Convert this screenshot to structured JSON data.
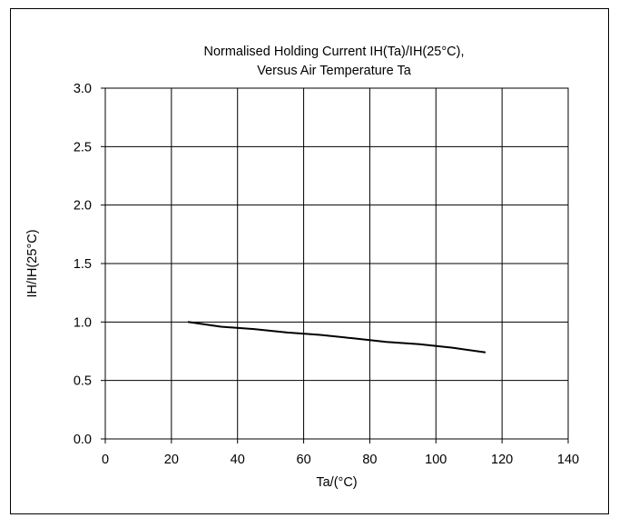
{
  "chart_data": {
    "type": "line",
    "title_line1": "Normalised Holding Current IH(Ta)/IH(25°C),",
    "title_line2": "Versus Air Temperature Ta",
    "xlabel": "Ta/(°C)",
    "ylabel": "IH/IH(25°C)",
    "xlim": [
      0,
      140
    ],
    "ylim": [
      0,
      3.0
    ],
    "x_ticks": [
      "0",
      "20",
      "40",
      "60",
      "80",
      "100",
      "120",
      "140"
    ],
    "y_ticks": [
      "0.0",
      "0.5",
      "1.0",
      "1.5",
      "2.0",
      "2.5",
      "3.0"
    ],
    "grid": true,
    "legend": "none",
    "series": [
      {
        "color": "#000000",
        "x": [
          25,
          35,
          45,
          55,
          65,
          75,
          85,
          95,
          105,
          115
        ],
        "y": [
          1.0,
          0.96,
          0.94,
          0.91,
          0.89,
          0.86,
          0.83,
          0.81,
          0.78,
          0.74
        ]
      }
    ]
  }
}
